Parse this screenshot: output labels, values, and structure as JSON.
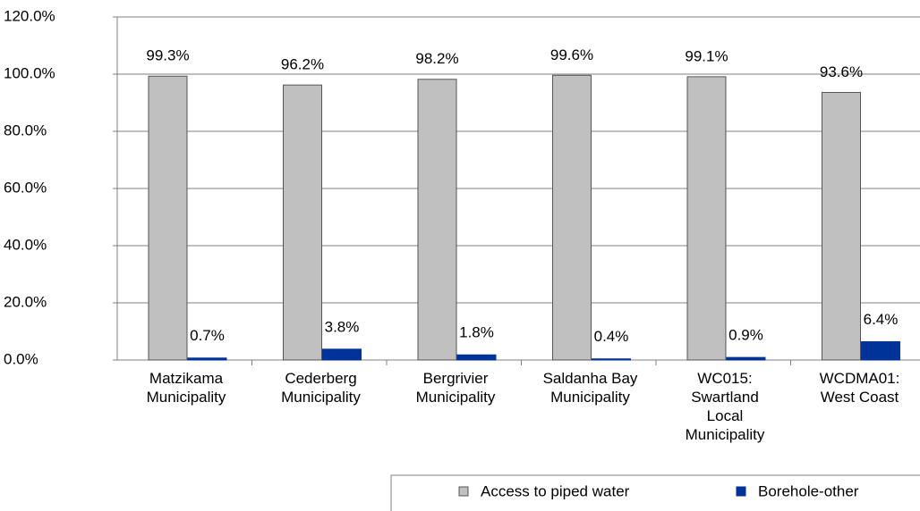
{
  "chart_data": {
    "type": "bar",
    "categories": [
      "Matzikama Municipality",
      "Cederberg Municipality",
      "Bergrivier Municipality",
      "Saldanha Bay Municipality",
      "WC015: Swartland Local Municipality",
      "WCDMA01: West Coast"
    ],
    "series": [
      {
        "name": "Access to piped water",
        "color": "#c0c0c0",
        "values": [
          99.3,
          96.2,
          98.2,
          99.6,
          99.1,
          93.6
        ],
        "value_labels": [
          "99.3%",
          "96.2%",
          "98.2%",
          "99.6%",
          "99.1%",
          "93.6%"
        ]
      },
      {
        "name": "Borehole-other",
        "color": "#003399",
        "values": [
          0.7,
          3.8,
          1.8,
          0.4,
          0.9,
          6.4
        ],
        "value_labels": [
          "0.7%",
          "3.8%",
          "1.8%",
          "0.4%",
          "0.9%",
          "6.4%"
        ]
      }
    ],
    "ylim": [
      0,
      120
    ],
    "yticks": [
      {
        "value": 0,
        "label": "0.0%"
      },
      {
        "value": 20,
        "label": "20.0%"
      },
      {
        "value": 40,
        "label": "40.0%"
      },
      {
        "value": 60,
        "label": "60.0%"
      },
      {
        "value": 80,
        "label": "80.0%"
      },
      {
        "value": 100,
        "label": "100.0%"
      },
      {
        "value": 120,
        "label": "120.0%"
      }
    ],
    "grid": true,
    "legend": "bottom"
  }
}
